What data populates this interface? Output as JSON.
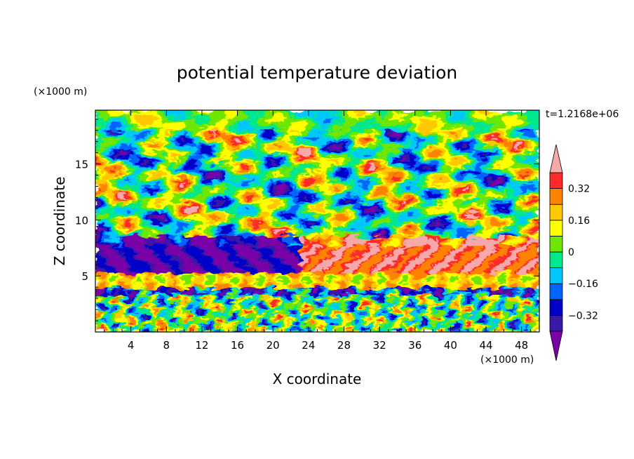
{
  "chart_data": {
    "type": "heatmap",
    "title": "potential temperature deviation",
    "xlabel": "X coordinate",
    "ylabel": "Z coordinate",
    "x_unit": "(×1000 m)",
    "y_unit": "(×1000 m)",
    "time_label": "t=1.2168e+06",
    "xlim": [
      0,
      50
    ],
    "ylim": [
      0,
      19.8
    ],
    "x_ticks": [
      4,
      8,
      12,
      16,
      20,
      24,
      28,
      32,
      36,
      40,
      44,
      48
    ],
    "y_ticks": [
      5,
      10,
      15
    ],
    "colorbar": {
      "levels": [
        -0.4,
        -0.32,
        -0.24,
        -0.16,
        -0.08,
        0,
        0.08,
        0.16,
        0.24,
        0.32,
        0.4
      ],
      "tick_labels": [
        "0.32",
        "0.16",
        "0",
        "−0.16",
        "−0.32"
      ],
      "tick_values": [
        0.32,
        0.16,
        0,
        -0.16,
        -0.32
      ],
      "colors": [
        "#7a00a8",
        "#3a19a6",
        "#0000c8",
        "#0064ff",
        "#00c8ff",
        "#00e88c",
        "#6ee600",
        "#ffff00",
        "#ffc800",
        "#ff8200",
        "#ff2a2a",
        "#f7a8a8"
      ],
      "extend": "both"
    },
    "layers": [
      {
        "z_range": [
          0,
          4
        ],
        "pattern": "small turbulent eddies, mixed sign"
      },
      {
        "z_range": [
          4,
          5.2
        ],
        "pattern": "strong positive band (orange/yellow)"
      },
      {
        "z_range": [
          5.2,
          8.5
        ],
        "pattern": "large negative region (purple) west, positive (pink) east"
      },
      {
        "z_range": [
          8.5,
          19.8
        ],
        "pattern": "alternating wave cells, amplitude ±0.4"
      }
    ]
  }
}
